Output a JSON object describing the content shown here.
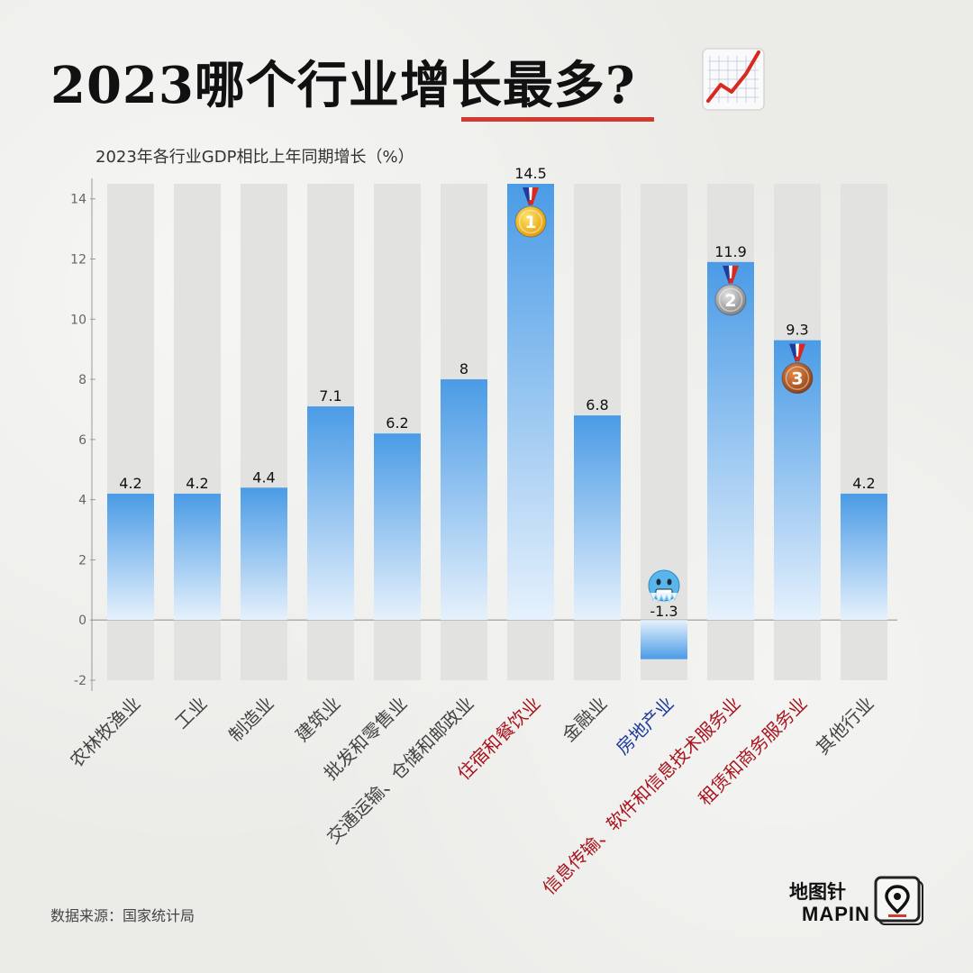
{
  "title": "2023哪个行业增长最多?",
  "subtitle": "2023年各行业GDP相比上年同期增长（%）",
  "source": "数据来源：国家统计局",
  "brand": {
    "cn": "地图针",
    "en": "MAPIN"
  },
  "icons": {
    "title_icon": "trend-chart-icon",
    "brand_icon": "map-pin-icon"
  },
  "colors": {
    "bar_top": "#4a9be6",
    "bar_bottom": "#e6f1fc",
    "highlight_label": "#a8141e",
    "realestate_label": "#1e3a9a",
    "underline": "#d13a31",
    "gold": "#f0b21a",
    "silver": "#9a9a9a",
    "bronze": "#b0551e"
  },
  "chart_data": {
    "type": "bar",
    "ylim": [
      -2,
      14.5
    ],
    "yticks": [
      -2,
      0,
      2,
      4,
      6,
      8,
      10,
      12,
      14
    ],
    "categories": [
      "农林牧渔业",
      "工业",
      "制造业",
      "建筑业",
      "批发和零售业",
      "交通运输、仓储和邮政业",
      "住宿和餐饮业",
      "金融业",
      "房地产业",
      "信息传输、软件和信息技术服务业",
      "租赁和商务服务业",
      "其他行业"
    ],
    "values": [
      4.2,
      4.2,
      4.4,
      7.1,
      6.2,
      8,
      14.5,
      6.8,
      -1.3,
      11.9,
      9.3,
      4.2
    ],
    "value_labels": [
      "4.2",
      "4.2",
      "4.4",
      "7.1",
      "6.2",
      "8",
      "14.5",
      "6.8",
      "-1.3",
      "11.9",
      "9.3",
      "4.2"
    ],
    "highlight": [
      "none",
      "none",
      "none",
      "none",
      "none",
      "none",
      "top",
      "none",
      "bottom",
      "top",
      "top",
      "none"
    ],
    "medals": [
      {
        "index": 6,
        "rank": "1",
        "color": "gold"
      },
      {
        "index": 9,
        "rank": "2",
        "color": "silver"
      },
      {
        "index": 10,
        "rank": "3",
        "color": "bronze"
      }
    ],
    "emoji": {
      "index": 8,
      "name": "freezing-face-icon"
    }
  }
}
